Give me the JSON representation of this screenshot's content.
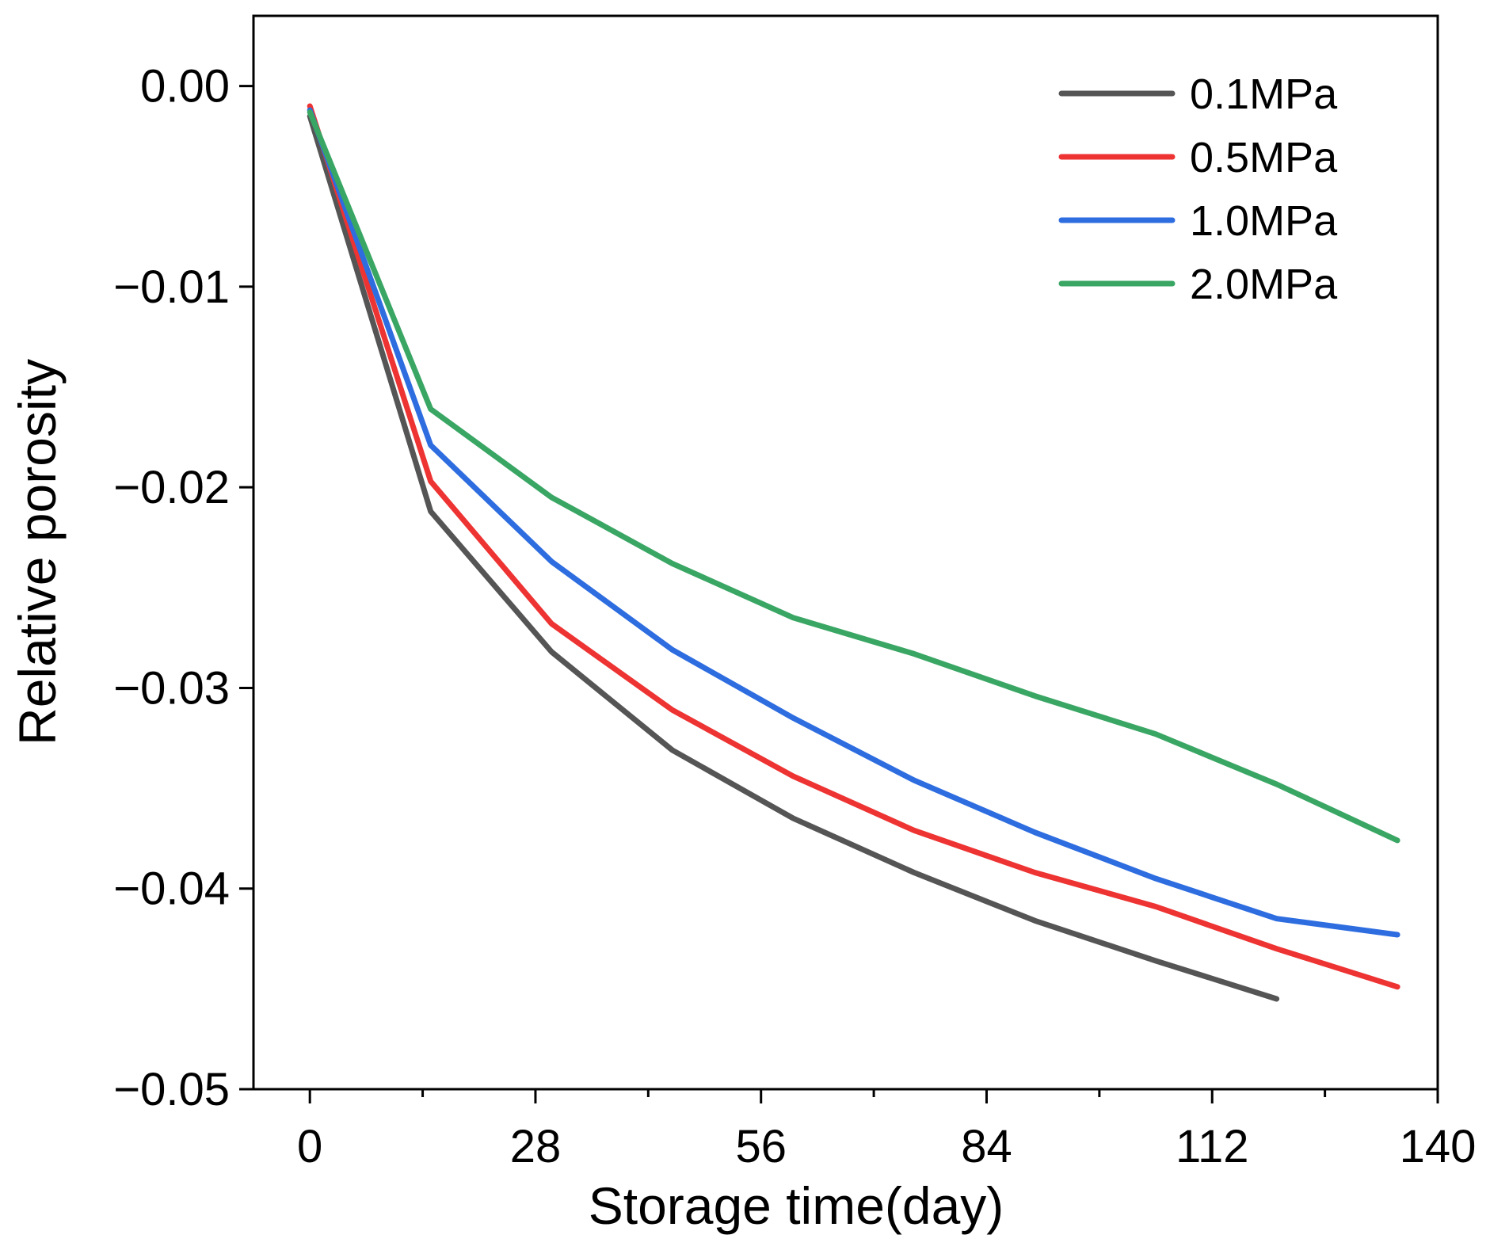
{
  "chart_data": {
    "type": "line",
    "title": "",
    "xlabel": "Storage time(day)",
    "ylabel": "Relative porosity",
    "xlim": [
      -7,
      140
    ],
    "ylim": [
      -0.05,
      0.0035
    ],
    "xticks": [
      0,
      28,
      56,
      84,
      112,
      140
    ],
    "xtick_labels": [
      "0",
      "28",
      "56",
      "84",
      "112",
      "140"
    ],
    "x_minor_ticks": [
      14,
      42,
      70,
      98,
      126
    ],
    "yticks": [
      0.0,
      -0.01,
      -0.02,
      -0.03,
      -0.04,
      -0.05
    ],
    "ytick_labels": [
      "0.00",
      "−0.01",
      "−0.02",
      "−0.03",
      "−0.04",
      "−0.05"
    ],
    "grid": false,
    "legend_position": "top-right",
    "series": [
      {
        "name": "0.1MPa",
        "color": "#555555",
        "x": [
          0,
          15,
          30,
          45,
          60,
          75,
          90,
          105,
          120
        ],
        "y": [
          -0.0015,
          -0.0212,
          -0.0282,
          -0.0331,
          -0.0365,
          -0.0392,
          -0.0416,
          -0.0436,
          -0.0455
        ]
      },
      {
        "name": "0.5MPa",
        "color": "#ee3333",
        "x": [
          0,
          15,
          30,
          45,
          60,
          75,
          90,
          105,
          120,
          135
        ],
        "y": [
          -0.001,
          -0.0197,
          -0.0268,
          -0.0311,
          -0.0344,
          -0.0371,
          -0.0392,
          -0.0409,
          -0.043,
          -0.0449
        ]
      },
      {
        "name": "1.0MPa",
        "color": "#2e6de0",
        "x": [
          0,
          15,
          30,
          45,
          60,
          75,
          90,
          105,
          120,
          135
        ],
        "y": [
          -0.0012,
          -0.0179,
          -0.0237,
          -0.0281,
          -0.0315,
          -0.0346,
          -0.0372,
          -0.0395,
          -0.0415,
          -0.0423
        ]
      },
      {
        "name": "2.0MPa",
        "color": "#3aa664",
        "x": [
          0,
          15,
          30,
          45,
          60,
          75,
          90,
          105,
          120,
          135
        ],
        "y": [
          -0.0013,
          -0.0161,
          -0.0205,
          -0.0238,
          -0.0265,
          -0.0283,
          -0.0304,
          -0.0323,
          -0.0348,
          -0.0376
        ]
      }
    ]
  }
}
